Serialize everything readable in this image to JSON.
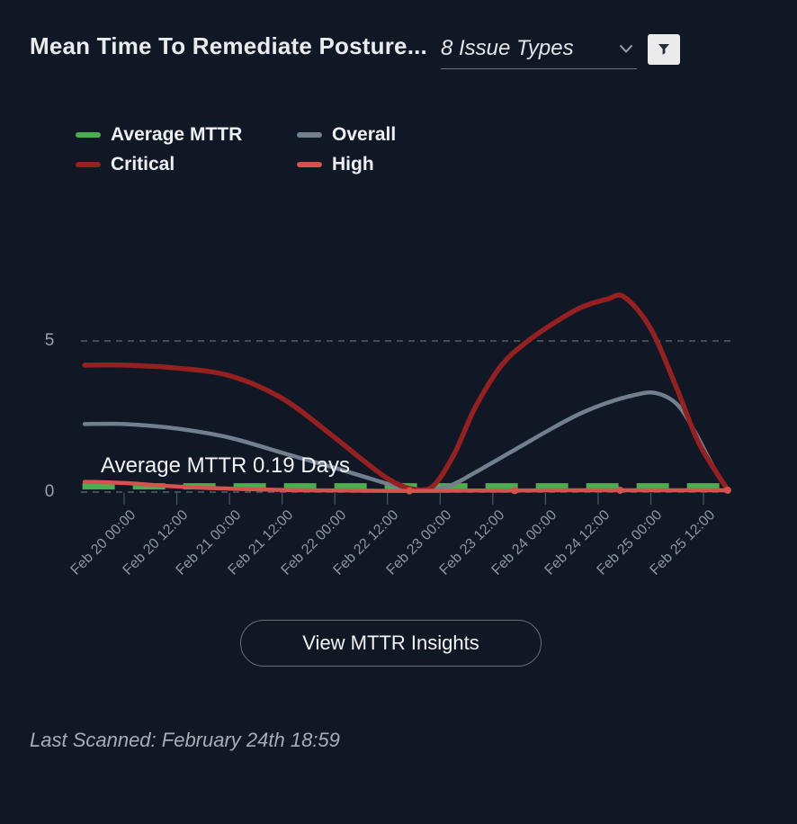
{
  "header": {
    "title": "Mean Time To Remediate Posture...",
    "issue_types": "8 Issue Types"
  },
  "icons": {
    "dropdown_chevron": "chevron-down",
    "filter": "funnel"
  },
  "colors": {
    "background": "#101826",
    "average_mttr_green": "#4aae50",
    "overall_gray": "#71808f",
    "critical_dark_red": "#962020",
    "high_red": "#d6524e",
    "grid_dash": "#9499a3",
    "axis_label": "#8d95a2",
    "filter_button_bg": "#ebebeb"
  },
  "legend": {
    "items": [
      {
        "label": "Average MTTR",
        "color": "#4aae50"
      },
      {
        "label": "Overall",
        "color": "#71808f"
      },
      {
        "label": "Critical",
        "color": "#962020"
      },
      {
        "label": "High",
        "color": "#d6524e"
      }
    ]
  },
  "annotation": {
    "text": "Average MTTR 0.19 Days"
  },
  "button": {
    "label": "View MTTR Insights"
  },
  "footer": {
    "last_scanned": "Last Scanned: February 24th 18:59"
  },
  "chart_data": {
    "type": "line",
    "title": "Mean Time To Remediate Posture (Days)",
    "x_unit": "hours since Feb 20 00:00, ticks every 12h",
    "x_categories": [
      "Feb 20 00:00",
      "Feb 20 12:00",
      "Feb 21 00:00",
      "Feb 21 12:00",
      "Feb 22 00:00",
      "Feb 22 12:00",
      "Feb 23 00:00",
      "Feb 23 12:00",
      "Feb 24 00:00",
      "Feb 24 12:00",
      "Feb 25 00:00",
      "Feb 25 12:00"
    ],
    "y_ticks": [
      5,
      0
    ],
    "ylim": [
      0,
      6.6
    ],
    "grid": "horizontal-dashed",
    "legend_position": "top-left",
    "average_mttr_days": 0.19,
    "series": [
      {
        "name": "Average MTTR",
        "color": "#4aae50",
        "style": "dashed",
        "width": 7,
        "constant_value": 0.19,
        "t_range": [
          -9.5,
          139.5
        ]
      },
      {
        "name": "Overall",
        "color": "#71808f",
        "style": "solid",
        "width": 4.5,
        "points": [
          [
            -9,
            2.25
          ],
          [
            0,
            2.25
          ],
          [
            12,
            2.1
          ],
          [
            24,
            1.8
          ],
          [
            36,
            1.3
          ],
          [
            48,
            0.8
          ],
          [
            56,
            0.45
          ],
          [
            62,
            0.2
          ],
          [
            68,
            0.08
          ],
          [
            74,
            0.2
          ],
          [
            80,
            0.65
          ],
          [
            86,
            1.15
          ],
          [
            92,
            1.65
          ],
          [
            98,
            2.15
          ],
          [
            104,
            2.6
          ],
          [
            110,
            2.95
          ],
          [
            116,
            3.2
          ],
          [
            121,
            3.28
          ],
          [
            126,
            2.9
          ],
          [
            130,
            2.0
          ],
          [
            134,
            0.9
          ],
          [
            137.5,
            0.07
          ]
        ]
      },
      {
        "name": "Critical",
        "color": "#962020",
        "style": "solid",
        "width": 5.5,
        "points": [
          [
            -9,
            4.2
          ],
          [
            0,
            4.2
          ],
          [
            12,
            4.1
          ],
          [
            24,
            3.85
          ],
          [
            36,
            3.1
          ],
          [
            48,
            1.8
          ],
          [
            54,
            1.1
          ],
          [
            60,
            0.45
          ],
          [
            65,
            0.12
          ],
          [
            70,
            0.15
          ],
          [
            75,
            1.2
          ],
          [
            80,
            2.8
          ],
          [
            86,
            4.2
          ],
          [
            92,
            5.0
          ],
          [
            98,
            5.6
          ],
          [
            104,
            6.1
          ],
          [
            110,
            6.38
          ],
          [
            114,
            6.45
          ],
          [
            120,
            5.4
          ],
          [
            126,
            3.4
          ],
          [
            131,
            1.6
          ],
          [
            137.5,
            0.08
          ]
        ]
      },
      {
        "name": "High",
        "color": "#d6524e",
        "style": "solid",
        "width": 4.5,
        "points": [
          [
            -9,
            0.34
          ],
          [
            0,
            0.3
          ],
          [
            10,
            0.2
          ],
          [
            20,
            0.13
          ],
          [
            30,
            0.09
          ],
          [
            40,
            0.06
          ],
          [
            50,
            0.05
          ],
          [
            65,
            0.04
          ],
          [
            80,
            0.05
          ],
          [
            89,
            0.05
          ],
          [
            100,
            0.06
          ],
          [
            113,
            0.06
          ],
          [
            125,
            0.06
          ],
          [
            137.5,
            0.06
          ]
        ],
        "markers": [
          [
            65,
            0.04
          ],
          [
            89,
            0.05
          ],
          [
            113,
            0.06
          ],
          [
            137.5,
            0.06
          ]
        ]
      }
    ]
  }
}
